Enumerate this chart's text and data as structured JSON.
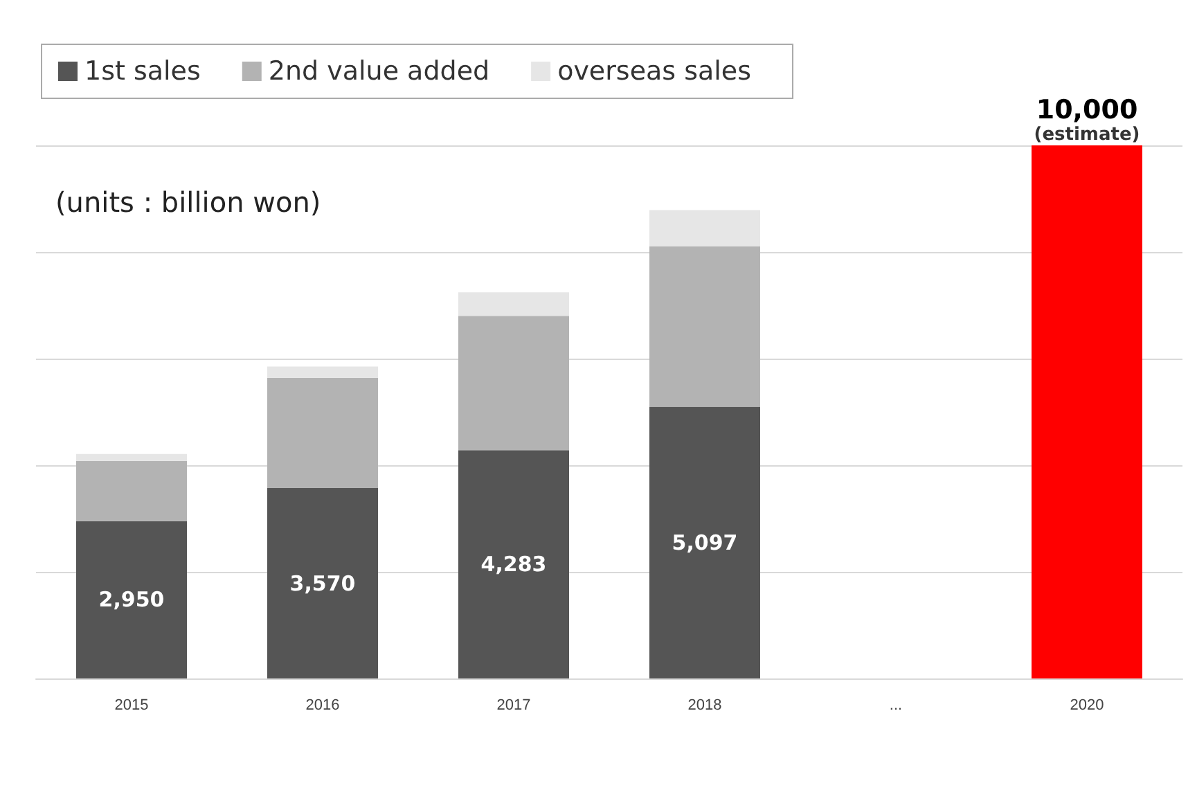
{
  "chart_data": {
    "type": "bar",
    "stacked": true,
    "categories": [
      "2015",
      "2016",
      "2017",
      "2018",
      "...",
      "2020"
    ],
    "series": [
      {
        "name": "1st sales",
        "color": "#555555",
        "values": [
          2950,
          3570,
          4283,
          5097,
          null,
          null
        ],
        "value_labels": [
          "2,950",
          "3,570",
          "4,283",
          "5,097",
          null,
          null
        ]
      },
      {
        "name": "2nd value added",
        "color": "#b3b3b3",
        "values": [
          1130,
          2070,
          2520,
          3010,
          null,
          null
        ]
      },
      {
        "name": "overseas sales",
        "color": "#e6e6e6",
        "values": [
          130,
          210,
          440,
          680,
          null,
          null
        ]
      },
      {
        "color": "#ff0000",
        "values": [
          null,
          null,
          null,
          null,
          null,
          10000
        ],
        "value_labels": [
          null,
          null,
          null,
          null,
          null,
          "10,000"
        ]
      }
    ],
    "ylim": [
      0,
      10000
    ],
    "yticks": [
      {
        "value": 0,
        "label": null
      },
      {
        "value": 2000,
        "label": null
      },
      {
        "value": 4000,
        "label": null
      },
      {
        "value": 6000,
        "label": null
      },
      {
        "value": 8000,
        "label": null
      },
      {
        "value": 10000,
        "label": null
      }
    ],
    "tick_labels": "x",
    "grid": "y",
    "legend": "top left",
    "annotations": [
      "(units : billion won)",
      {
        "text": "(estimate)",
        "x": "2020",
        "y": 10000
      }
    ]
  }
}
